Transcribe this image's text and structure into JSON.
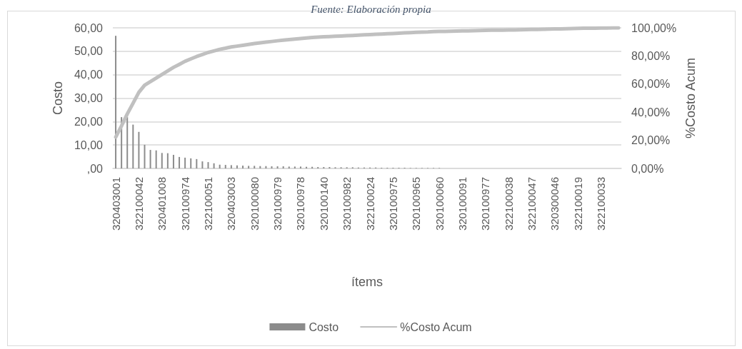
{
  "chart_data": {
    "type": "bar",
    "annotations": [
      "Fuente: Elaboración propia"
    ],
    "xlabel": "ítems",
    "ylabel": "Costo",
    "y2label": "%Costo Acum",
    "categories": [
      "320403001",
      null,
      null,
      null,
      "322100042",
      null,
      null,
      null,
      "320401008",
      null,
      null,
      null,
      "320100974",
      null,
      null,
      null,
      "322100051",
      null,
      null,
      null,
      "320403003",
      null,
      null,
      null,
      "320100080",
      null,
      null,
      null,
      "320100979",
      null,
      null,
      null,
      "320100978",
      null,
      null,
      null,
      "320100140",
      null,
      null,
      null,
      "320100982",
      null,
      null,
      null,
      "322100024",
      null,
      null,
      null,
      "320100975",
      null,
      null,
      null,
      "320100965",
      null,
      null,
      null,
      "320100060",
      null,
      null,
      null,
      "320100091",
      null,
      null,
      null,
      "320100977",
      null,
      null,
      null,
      "322100038",
      null,
      null,
      null,
      "322100047",
      null,
      null,
      null,
      "320300046",
      null,
      null,
      null,
      "322100019",
      null,
      null,
      null,
      "322100033",
      null,
      null,
      null
    ],
    "series": [
      {
        "name": "Costo",
        "color": "#8c8c8c",
        "values": [
          56.6,
          21.9,
          21.9,
          18.7,
          15.6,
          10.1,
          7.9,
          7.7,
          6.6,
          6.5,
          5.8,
          4.9,
          4.6,
          4.3,
          4.0,
          3.0,
          2.7,
          2.2,
          1.6,
          1.5,
          1.4,
          1.3,
          1.2,
          1.1,
          1.1,
          1.0,
          1.0,
          0.9,
          0.9,
          0.9,
          0.8,
          0.8,
          0.8,
          0.7,
          0.7,
          0.6,
          0.6,
          0.6,
          0.5,
          0.5,
          0.5,
          0.5,
          0.4,
          0.4,
          0.4,
          0.4,
          0.3,
          0.3,
          0.3,
          0.3,
          0.3,
          0.2,
          0.2,
          0.2,
          0.2,
          0.2,
          0.2,
          null,
          null,
          null,
          null,
          null,
          null,
          null,
          null,
          null,
          null,
          null,
          null,
          null,
          null,
          null,
          null,
          null,
          null,
          null,
          null,
          null,
          null,
          null,
          null,
          null,
          null,
          null,
          null,
          null,
          null,
          null
        ]
      },
      {
        "name": "%Costo Acum",
        "type": "line",
        "axis": "y2",
        "color": "#c0c0c0",
        "values": [
          22.3,
          30.3,
          38.8,
          46.4,
          54.1,
          59.2,
          61.7,
          64.3,
          66.8,
          69.4,
          71.9,
          74.0,
          76.2,
          77.9,
          79.6,
          81.0,
          82.5,
          83.6,
          84.7,
          85.5,
          86.4,
          87.0,
          87.6,
          88.2,
          88.8,
          89.3,
          89.8,
          90.3,
          90.8,
          91.2,
          91.6,
          92.0,
          92.4,
          92.8,
          93.2,
          93.4,
          93.6,
          93.8,
          94.0,
          94.2,
          94.4,
          94.6,
          94.8,
          95.0,
          95.2,
          95.4,
          95.6,
          95.8,
          96.0,
          96.2,
          96.4,
          96.6,
          96.8,
          97.0,
          97.1,
          97.3,
          97.4,
          97.5,
          97.6,
          97.7,
          97.8,
          97.9,
          98.0,
          98.1,
          98.2,
          98.3,
          98.4,
          98.4,
          98.5,
          98.5,
          98.6,
          98.7,
          98.8,
          98.9,
          99.0,
          99.1,
          99.2,
          99.3,
          99.4,
          99.5,
          99.6,
          99.7,
          99.8,
          99.8,
          99.9,
          99.9,
          100,
          100
        ]
      }
    ],
    "ylim": [
      0,
      60
    ],
    "yticks": [
      {
        "value": 0,
        "label": ",00"
      },
      {
        "value": 10,
        "label": "10,00"
      },
      {
        "value": 20,
        "label": "20,00"
      },
      {
        "value": 30,
        "label": "30,00"
      },
      {
        "value": 40,
        "label": "40,00"
      },
      {
        "value": 50,
        "label": "50,00"
      },
      {
        "value": 60,
        "label": "60,00"
      }
    ],
    "y2lim": [
      0,
      100
    ],
    "y2ticks": [
      {
        "value": 0,
        "label": "0,00%"
      },
      {
        "value": 20,
        "label": "20,00%"
      },
      {
        "value": 40,
        "label": "40,00%"
      },
      {
        "value": 60,
        "label": "60,00%"
      },
      {
        "value": 80,
        "label": "80,00%"
      },
      {
        "value": 100,
        "label": "100,00%"
      }
    ],
    "grid": "y",
    "legend": "bottom",
    "marker": "none",
    "line_style": "solid"
  }
}
